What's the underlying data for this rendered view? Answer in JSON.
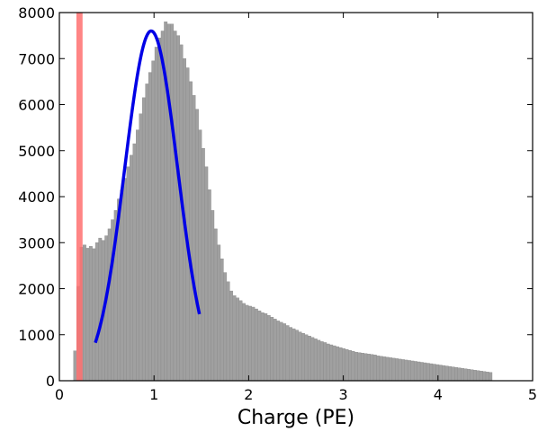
{
  "chart_data": {
    "type": "bar",
    "title": "",
    "xlabel": "Charge (PE)",
    "ylabel": "",
    "xlim": [
      0,
      5
    ],
    "ylim": [
      0,
      8000
    ],
    "xticks": [
      0,
      1,
      2,
      3,
      4,
      5
    ],
    "yticks": [
      0,
      1000,
      2000,
      3000,
      4000,
      5000,
      6000,
      7000,
      8000
    ],
    "grid": false,
    "legend": "none",
    "histogram": {
      "name": "",
      "color": "#a0a0a0",
      "edge_color": "#8a8a8a",
      "bin_width": 0.033,
      "x_start": 0.15,
      "values": [
        650,
        2050,
        2900,
        2950,
        2880,
        2920,
        2870,
        3000,
        3100,
        3050,
        3150,
        3300,
        3500,
        3700,
        3950,
        4150,
        4400,
        4650,
        4900,
        5150,
        5450,
        5800,
        6150,
        6450,
        6700,
        6950,
        7250,
        7450,
        7600,
        7800,
        7750,
        7750,
        7600,
        7500,
        7300,
        7000,
        6800,
        6500,
        6200,
        5900,
        5450,
        5050,
        4650,
        4150,
        3700,
        3300,
        2950,
        2650,
        2350,
        2150,
        1950,
        1850,
        1800,
        1740,
        1680,
        1640,
        1620,
        1600,
        1560,
        1520,
        1480,
        1460,
        1420,
        1380,
        1340,
        1300,
        1270,
        1240,
        1200,
        1160,
        1130,
        1100,
        1060,
        1030,
        1000,
        970,
        940,
        910,
        880,
        850,
        830,
        800,
        780,
        760,
        740,
        720,
        700,
        680,
        660,
        640,
        620,
        610,
        600,
        590,
        580,
        570,
        560,
        540,
        530,
        520,
        510,
        500,
        490,
        480,
        470,
        460,
        450,
        440,
        430,
        420,
        410,
        400,
        390,
        380,
        370,
        360,
        350,
        340,
        330,
        320,
        310,
        300,
        290,
        280,
        270,
        260,
        250,
        240,
        230,
        220,
        210,
        200,
        190,
        180
      ]
    },
    "fit_curve": {
      "type": "gaussian",
      "color": "#0000e6",
      "amplitude": 7600,
      "mean": 0.97,
      "sigma": 0.28,
      "x_range": [
        0.38,
        1.48
      ]
    },
    "threshold_band": {
      "color": "#ff7070",
      "x_range": [
        0.18,
        0.245
      ]
    }
  }
}
